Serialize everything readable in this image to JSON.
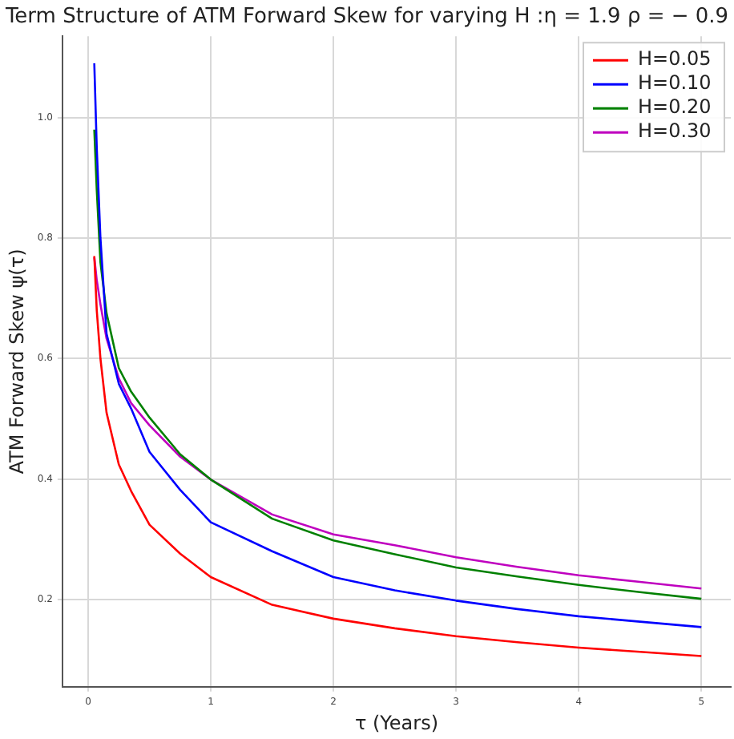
{
  "chart_data": {
    "type": "line",
    "title": "Term Structure of ATM Forward Skew for varying H :η = 1.9 ρ = − 0.9",
    "xlabel": "τ (Years)",
    "ylabel": "ATM Forward Skew ψ(τ)",
    "x": [
      0.05,
      0.07,
      0.1,
      0.15,
      0.25,
      0.35,
      0.5,
      0.75,
      1,
      1.5,
      2,
      2.5,
      3,
      3.5,
      4,
      4.5,
      5
    ],
    "series": [
      {
        "name": "H=0.05",
        "color": "#ff0000",
        "values": [
          0.77,
          0.68,
          0.6,
          0.51,
          0.424,
          0.38,
          0.324,
          0.276,
          0.237,
          0.191,
          0.168,
          0.152,
          0.139,
          0.129,
          0.12,
          0.113,
          0.106
        ]
      },
      {
        "name": "H=0.10",
        "color": "#0000ff",
        "values": [
          1.09,
          0.95,
          0.8,
          0.641,
          0.558,
          0.517,
          0.445,
          0.382,
          0.328,
          0.28,
          0.237,
          0.215,
          0.198,
          0.184,
          0.172,
          0.163,
          0.154
        ]
      },
      {
        "name": "H=0.20",
        "color": "#008000",
        "values": [
          0.98,
          0.88,
          0.76,
          0.675,
          0.584,
          0.545,
          0.502,
          0.441,
          0.399,
          0.334,
          0.298,
          0.275,
          0.253,
          0.238,
          0.224,
          0.212,
          0.201
        ]
      },
      {
        "name": "H=0.30",
        "color": "#bf00bf",
        "values": [
          0.768,
          0.73,
          0.69,
          0.633,
          0.567,
          0.526,
          0.489,
          0.437,
          0.399,
          0.341,
          0.308,
          0.29,
          0.27,
          0.254,
          0.24,
          0.229,
          0.218
        ]
      }
    ],
    "xlim": [
      -0.21,
      5.24
    ],
    "ylim": [
      0.055,
      1.135
    ],
    "xticks": [
      0,
      1,
      2,
      3,
      4,
      5
    ],
    "yticks": [
      {
        "value": 0.2,
        "label": "0.2"
      },
      {
        "value": 0.4,
        "label": "0.4"
      },
      {
        "value": 0.6,
        "label": "0.6"
      },
      {
        "value": 0.8,
        "label": "0.8"
      },
      {
        "value": 1.0,
        "label": "1.0"
      }
    ],
    "grid": true,
    "legend": "top right",
    "marker": "none",
    "line_style": "solid"
  }
}
